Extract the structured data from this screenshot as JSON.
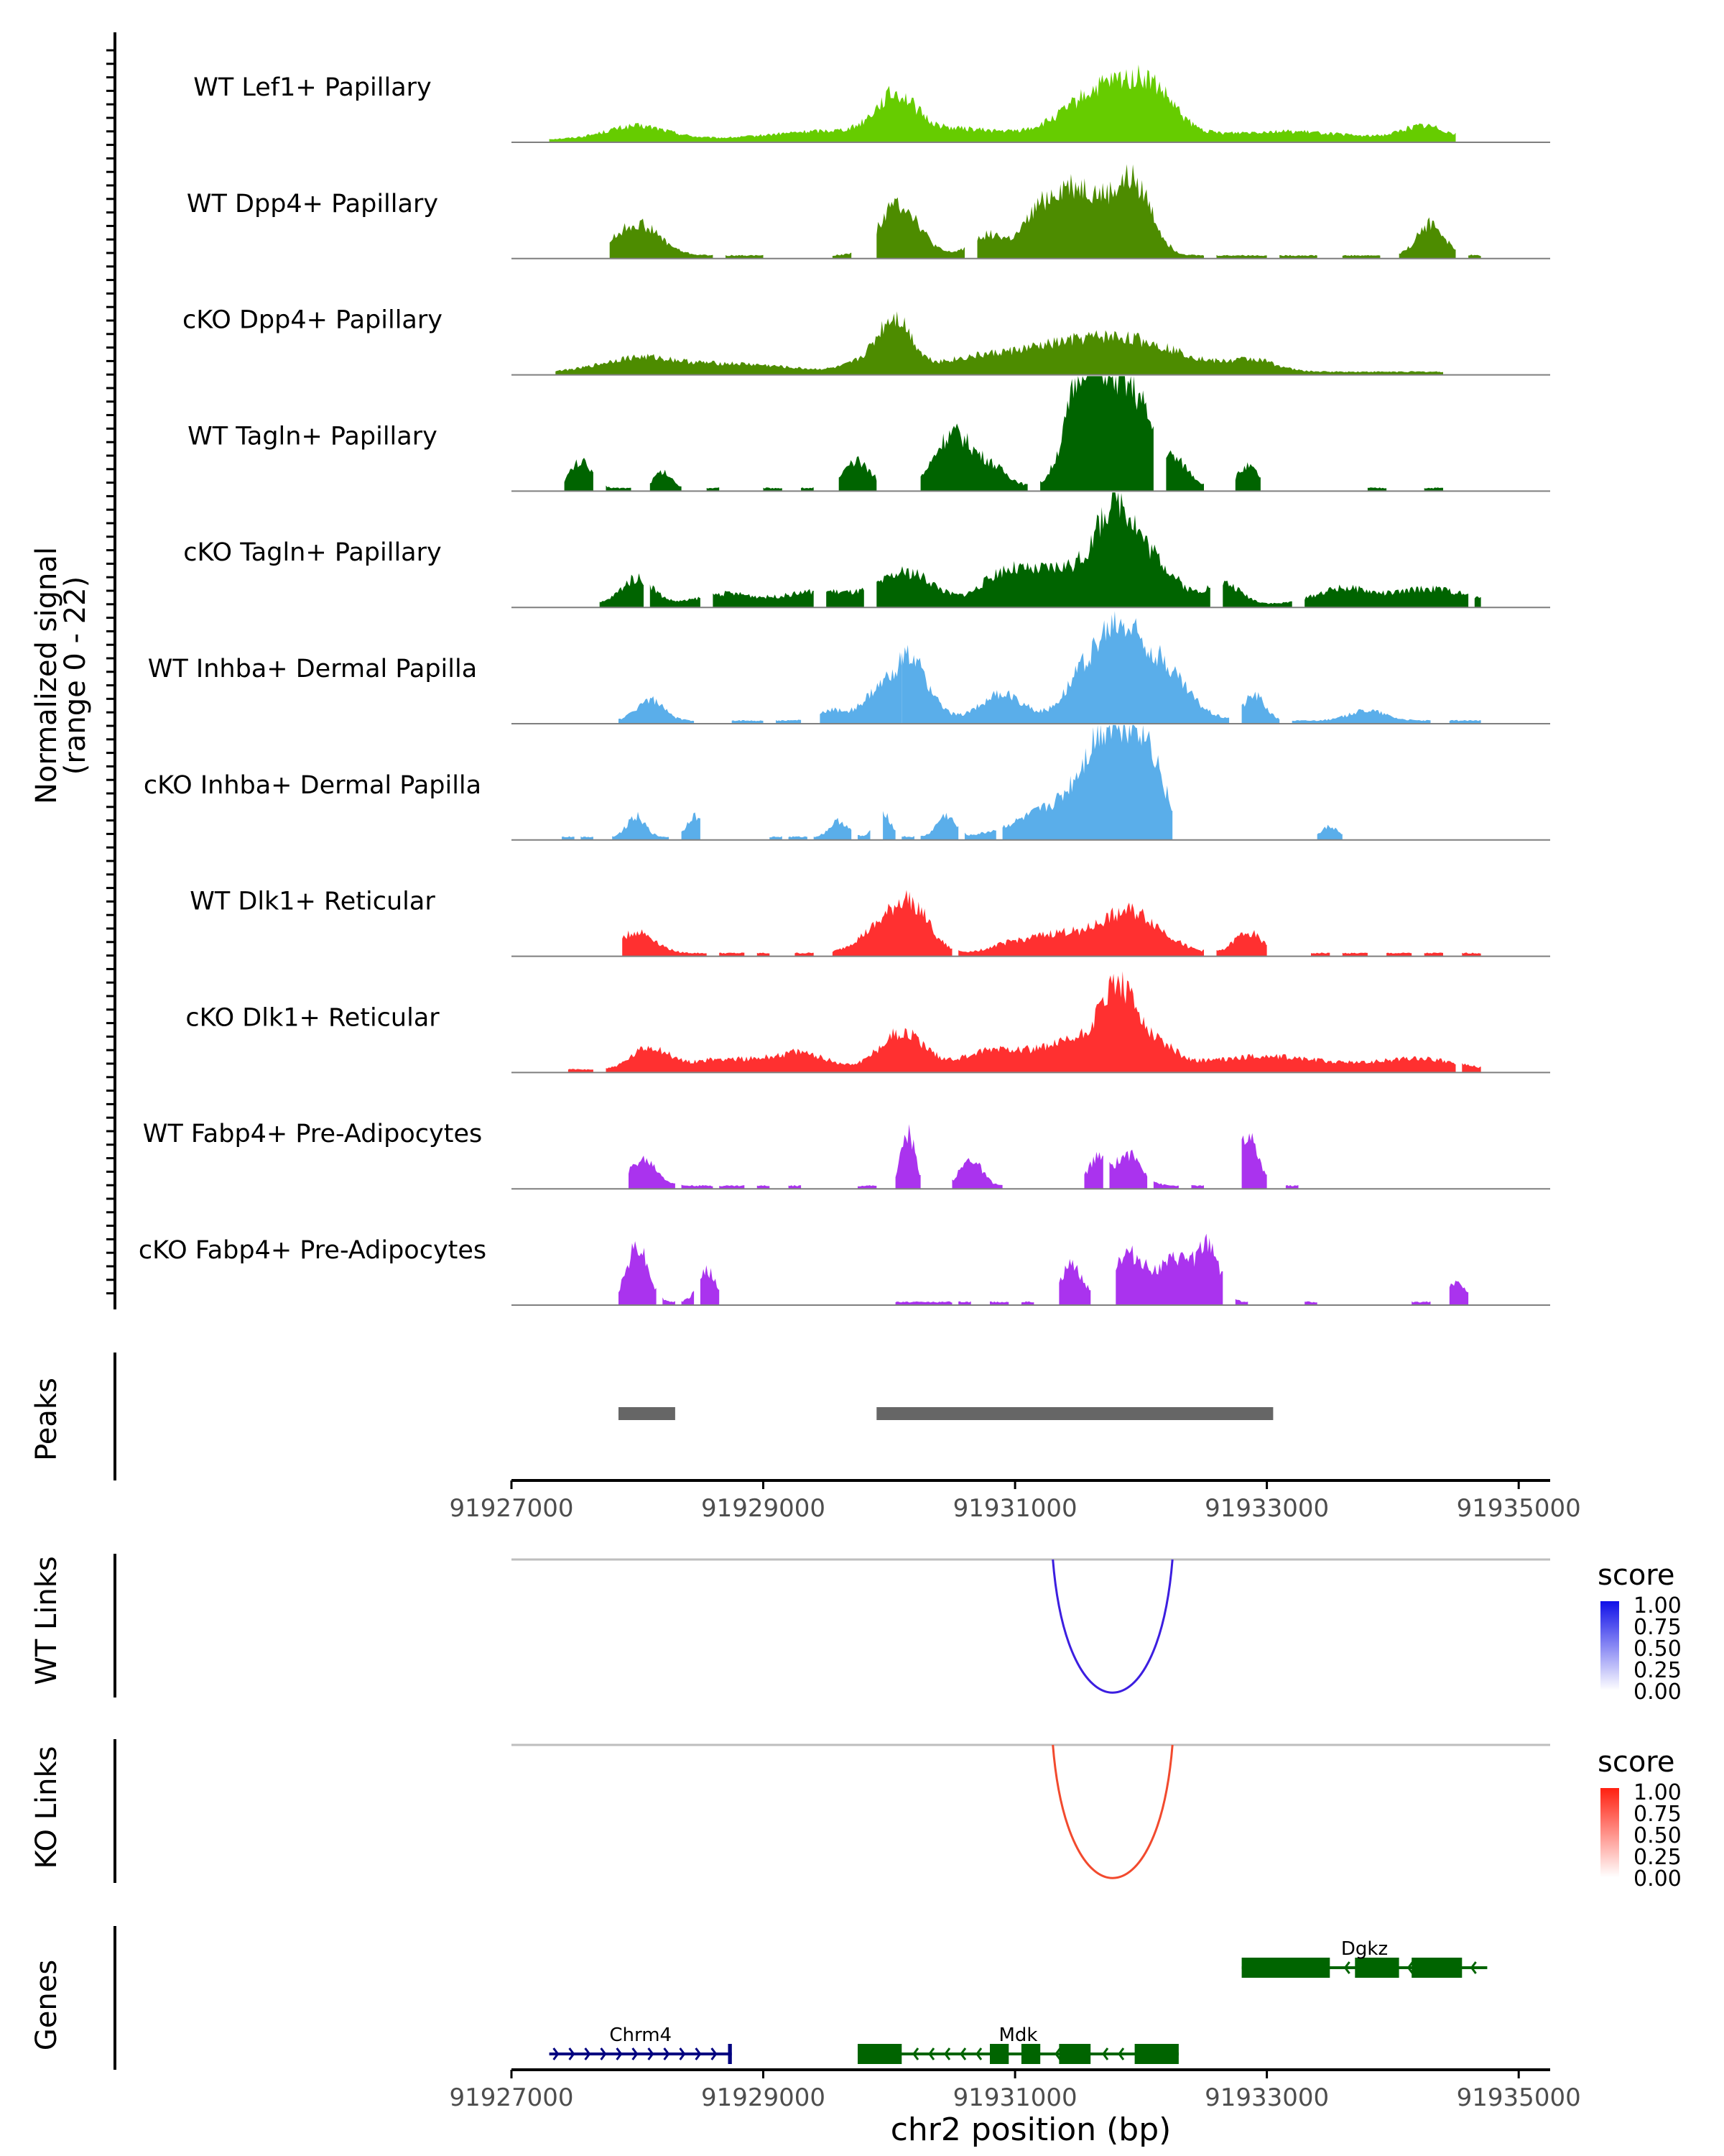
{
  "chart_data": {
    "type": "coverage-track",
    "region": "chr2",
    "xlabel": "chr2 position (bp)",
    "x_ticks": [
      "91927000",
      "91929000",
      "91931000",
      "91933000",
      "91935000"
    ],
    "xlim": [
      91927000,
      91935250
    ],
    "ylabel_line1": "Normalized signal",
    "ylabel_line2": "(range 0 - 22)",
    "ylim": [
      0,
      22
    ],
    "tracks": [
      {
        "label": "WT Lef1+ Papillary",
        "color": "#66cc00",
        "regions": [
          [
            91927300,
            91934500
          ]
        ],
        "peaks": [
          [
            91928000,
            350,
            2.5
          ],
          [
            91929500,
            600,
            1.5
          ],
          [
            91930050,
            220,
            7
          ],
          [
            91930500,
            600,
            2
          ],
          [
            91931750,
            450,
            10
          ],
          [
            91932100,
            250,
            5
          ],
          [
            91933100,
            700,
            1.5
          ],
          [
            91934250,
            250,
            2.5
          ]
        ]
      },
      {
        "label": "WT Dpp4+ Papillary",
        "color": "#4d8c00",
        "regions": [
          [
            91927780,
            91928600
          ],
          [
            91928700,
            91929000
          ],
          [
            91929550,
            91929700
          ],
          [
            91929900,
            91930600
          ],
          [
            91930700,
            91932500
          ],
          [
            91932600,
            91933000
          ],
          [
            91933100,
            91933400
          ],
          [
            91933600,
            91933900
          ],
          [
            91934050,
            91934500
          ],
          [
            91934600,
            91934700
          ]
        ],
        "peaks": [
          [
            91928000,
            250,
            6
          ],
          [
            91930080,
            220,
            10
          ],
          [
            91930800,
            200,
            4
          ],
          [
            91931150,
            150,
            5
          ],
          [
            91931350,
            200,
            8
          ],
          [
            91931600,
            250,
            10
          ],
          [
            91931950,
            200,
            13
          ],
          [
            91934300,
            150,
            6
          ]
        ]
      },
      {
        "label": "cKO Dpp4+ Papillary",
        "color": "#4d8c00",
        "regions": [
          [
            91927350,
            91934400
          ]
        ],
        "peaks": [
          [
            91928000,
            400,
            2.5
          ],
          [
            91928750,
            600,
            1.5
          ],
          [
            91929850,
            250,
            2
          ],
          [
            91930050,
            180,
            9
          ],
          [
            91930650,
            500,
            2
          ],
          [
            91931350,
            600,
            3.5
          ],
          [
            91931950,
            600,
            5
          ],
          [
            91932900,
            250,
            2
          ]
        ]
      },
      {
        "label": "WT Tagln+ Papillary",
        "color": "#006400",
        "regions": [
          [
            91927420,
            91927650
          ],
          [
            91927750,
            91927950
          ],
          [
            91928100,
            91928350
          ],
          [
            91928550,
            91928650
          ],
          [
            91929000,
            91929150
          ],
          [
            91929300,
            91929400
          ],
          [
            91929600,
            91929900
          ],
          [
            91930250,
            91931100
          ],
          [
            91931200,
            91932100
          ],
          [
            91932200,
            91932500
          ],
          [
            91932750,
            91932950
          ],
          [
            91933800,
            91933950
          ],
          [
            91934250,
            91934400
          ]
        ],
        "peaks": [
          [
            91927550,
            120,
            5
          ],
          [
            91928200,
            100,
            3
          ],
          [
            91929750,
            150,
            5
          ],
          [
            91930500,
            200,
            10
          ],
          [
            91930800,
            200,
            4
          ],
          [
            91931550,
            200,
            20
          ],
          [
            91931800,
            250,
            14
          ],
          [
            91932000,
            200,
            9
          ],
          [
            91932300,
            150,
            4
          ],
          [
            91932850,
            120,
            4
          ]
        ]
      },
      {
        "label": "cKO Tagln+ Papillary",
        "color": "#006400",
        "regions": [
          [
            91927700,
            91928050
          ],
          [
            91928100,
            91928500
          ],
          [
            91928600,
            91929400
          ],
          [
            91929500,
            91929800
          ],
          [
            91929900,
            91932550
          ],
          [
            91932650,
            91933200
          ],
          [
            91933300,
            91934600
          ],
          [
            91934650,
            91934700
          ]
        ],
        "peaks": [
          [
            91928000,
            180,
            5
          ],
          [
            91928700,
            300,
            2
          ],
          [
            91929450,
            400,
            2.5
          ],
          [
            91930150,
            300,
            6
          ],
          [
            91930900,
            250,
            5
          ],
          [
            91931400,
            400,
            7
          ],
          [
            91931800,
            200,
            16
          ],
          [
            91932100,
            250,
            8
          ],
          [
            91932650,
            200,
            4
          ],
          [
            91933600,
            300,
            3
          ],
          [
            91934300,
            400,
            3
          ]
        ]
      },
      {
        "label": "WT Inhba+ Dermal Papilla",
        "color": "#5aaeea",
        "regions": [
          [
            91927850,
            91928450
          ],
          [
            91928750,
            91929000
          ],
          [
            91929100,
            91929300
          ],
          [
            91929450,
            91930100
          ],
          [
            91930100,
            91932700
          ],
          [
            91932800,
            91933100
          ],
          [
            91933200,
            91934300
          ],
          [
            91934450,
            91934700
          ]
        ],
        "peaks": [
          [
            91928100,
            150,
            4
          ],
          [
            91929550,
            150,
            2
          ],
          [
            91929850,
            150,
            3
          ],
          [
            91930150,
            220,
            12
          ],
          [
            91930900,
            250,
            5
          ],
          [
            91931500,
            200,
            6
          ],
          [
            91931800,
            250,
            15
          ],
          [
            91932150,
            300,
            10
          ],
          [
            91932900,
            120,
            5
          ],
          [
            91933800,
            200,
            2
          ]
        ]
      },
      {
        "label": "cKO Inhba+ Dermal Papilla",
        "color": "#5aaeea",
        "regions": [
          [
            91927400,
            91927500
          ],
          [
            91927550,
            91927650
          ],
          [
            91927800,
            91928250
          ],
          [
            91928350,
            91928500
          ],
          [
            91929050,
            91929150
          ],
          [
            91929200,
            91929350
          ],
          [
            91929400,
            91929700
          ],
          [
            91929750,
            91929850
          ],
          [
            91929950,
            91930050
          ],
          [
            91930100,
            91930200
          ],
          [
            91930250,
            91930550
          ],
          [
            91930600,
            91930850
          ],
          [
            91930900,
            91932250
          ],
          [
            91933400,
            91933600
          ]
        ],
        "peaks": [
          [
            91927990,
            100,
            4
          ],
          [
            91928450,
            80,
            4
          ],
          [
            91929600,
            100,
            3
          ],
          [
            91929950,
            80,
            5
          ],
          [
            91930450,
            100,
            4
          ],
          [
            91931300,
            400,
            5
          ],
          [
            91931750,
            280,
            19
          ],
          [
            91932050,
            200,
            13
          ],
          [
            91933500,
            80,
            2
          ]
        ]
      },
      {
        "label": "WT Dlk1+ Reticular",
        "color": "#ff3030",
        "regions": [
          [
            91927880,
            91928550
          ],
          [
            91928650,
            91928850
          ],
          [
            91928950,
            91929050
          ],
          [
            91929250,
            91929400
          ],
          [
            91929550,
            91930500
          ],
          [
            91930550,
            91932500
          ],
          [
            91932600,
            91933000
          ],
          [
            91933350,
            91933500
          ],
          [
            91933600,
            91933800
          ],
          [
            91933950,
            91934150
          ],
          [
            91934250,
            91934400
          ],
          [
            91934550,
            91934700
          ]
        ],
        "peaks": [
          [
            91928000,
            200,
            4
          ],
          [
            91929850,
            200,
            3
          ],
          [
            91930150,
            220,
            10
          ],
          [
            91931000,
            250,
            2
          ],
          [
            91931350,
            250,
            3
          ],
          [
            91931900,
            350,
            8
          ],
          [
            91932850,
            150,
            4
          ]
        ]
      },
      {
        "label": "cKO Dlk1+ Reticular",
        "color": "#ff3030",
        "regions": [
          [
            91927450,
            91927650
          ],
          [
            91927750,
            91934500
          ],
          [
            91934550,
            91934700
          ]
        ],
        "peaks": [
          [
            91928100,
            200,
            4
          ],
          [
            91928700,
            400,
            2
          ],
          [
            91929300,
            300,
            3
          ],
          [
            91930100,
            250,
            7
          ],
          [
            91930900,
            400,
            4
          ],
          [
            91931500,
            300,
            5
          ],
          [
            91931800,
            180,
            12
          ],
          [
            91932050,
            250,
            6
          ],
          [
            91933000,
            700,
            2.5
          ],
          [
            91934200,
            400,
            2
          ]
        ]
      },
      {
        "label": "WT Fabp4+ Pre-Adipocytes",
        "color": "#aa33ee",
        "regions": [
          [
            91927930,
            91928300
          ],
          [
            91928350,
            91928600
          ],
          [
            91928650,
            91928850
          ],
          [
            91928950,
            91929050
          ],
          [
            91929200,
            91929300
          ],
          [
            91929750,
            91929900
          ],
          [
            91930050,
            91930250
          ],
          [
            91930500,
            91930900
          ],
          [
            91931550,
            91931700
          ],
          [
            91931750,
            91932050
          ],
          [
            91932100,
            91932300
          ],
          [
            91932400,
            91932500
          ],
          [
            91932800,
            91933000
          ],
          [
            91933150,
            91933250
          ]
        ],
        "peaks": [
          [
            91928050,
            150,
            5
          ],
          [
            91930150,
            80,
            10
          ],
          [
            91930650,
            120,
            5
          ],
          [
            91931650,
            100,
            5
          ],
          [
            91931900,
            150,
            6
          ],
          [
            91932850,
            120,
            9
          ]
        ]
      },
      {
        "label": "cKO Fabp4+ Pre-Adipocytes",
        "color": "#aa33ee",
        "regions": [
          [
            91927850,
            91928150
          ],
          [
            91928200,
            91928300
          ],
          [
            91928350,
            91928450
          ],
          [
            91928500,
            91928650
          ],
          [
            91930050,
            91930500
          ],
          [
            91930550,
            91930650
          ],
          [
            91930800,
            91930950
          ],
          [
            91931050,
            91931150
          ],
          [
            91931350,
            91931600
          ],
          [
            91931800,
            91932650
          ],
          [
            91932750,
            91932850
          ],
          [
            91933300,
            91933400
          ],
          [
            91934150,
            91934300
          ],
          [
            91934450,
            91934600
          ]
        ],
        "peaks": [
          [
            91928000,
            120,
            11
          ],
          [
            91928550,
            100,
            6
          ],
          [
            91931450,
            120,
            7
          ],
          [
            91931900,
            200,
            9
          ],
          [
            91932300,
            200,
            8
          ],
          [
            91932550,
            120,
            9
          ],
          [
            91934500,
            100,
            4
          ]
        ]
      }
    ],
    "peaks_track": {
      "label": "Peaks",
      "color": "#666666",
      "intervals": [
        [
          91927850,
          91928300
        ],
        [
          91929900,
          91933050
        ]
      ]
    },
    "links": [
      {
        "label": "WT Links",
        "color": "#3c1ee0",
        "start": 91931300,
        "end": 91932250,
        "score_range": [
          0,
          1
        ]
      },
      {
        "label": "KO Links",
        "color": "#f24a2e",
        "start": 91931300,
        "end": 91932250,
        "score_range": [
          0,
          1
        ]
      }
    ],
    "legends": [
      {
        "title": "score",
        "colors": [
          "#ffffff",
          "#1010e8"
        ],
        "ticks": [
          "1.00",
          "0.75",
          "0.50",
          "0.25",
          "0.00"
        ]
      },
      {
        "title": "score",
        "colors": [
          "#ffffff",
          "#ff2010"
        ],
        "ticks": [
          "1.00",
          "0.75",
          "0.50",
          "0.25",
          "0.00"
        ]
      }
    ],
    "genes_track": {
      "label": "Genes",
      "genes": [
        {
          "name": "Chrm4",
          "strand": "+",
          "color": "#000080",
          "row": 1,
          "start": 91927300,
          "end": 91928750,
          "exons": [
            [
              91928720,
              91928750
            ]
          ]
        },
        {
          "name": "Mdk",
          "strand": "-",
          "color": "#006400",
          "row": 1,
          "start": 91929750,
          "end": 91932300,
          "exons": [
            [
              91929750,
              91930100
            ],
            [
              91930800,
              91930950
            ],
            [
              91931050,
              91931200
            ],
            [
              91931350,
              91931600
            ],
            [
              91931950,
              91932300
            ]
          ]
        },
        {
          "name": "Dgkz",
          "strand": "-",
          "color": "#006400",
          "row": 0,
          "start": 91932800,
          "end": 91934750,
          "exons": [
            [
              91932800,
              91933500
            ],
            [
              91933700,
              91934050
            ],
            [
              91934150,
              91934550
            ]
          ]
        }
      ]
    }
  }
}
